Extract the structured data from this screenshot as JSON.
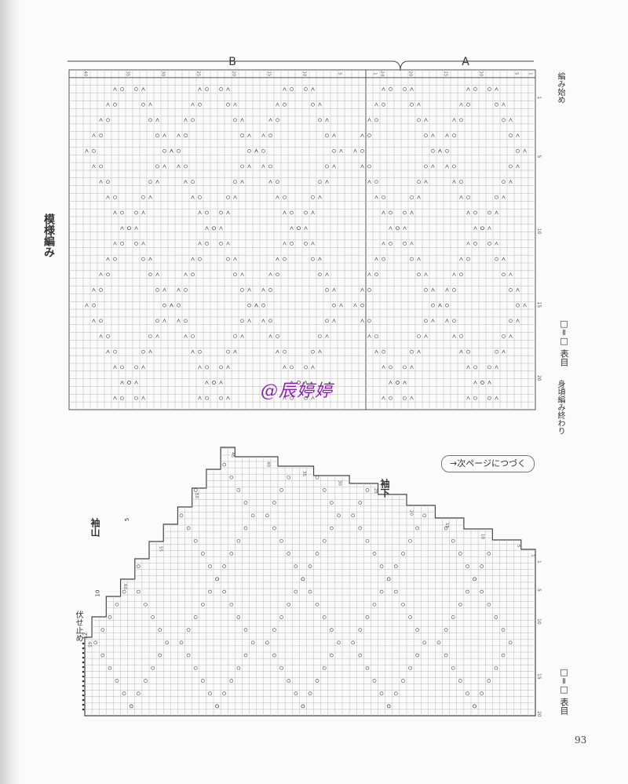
{
  "top_chart": {
    "title": "模様編み",
    "section_b": "B",
    "section_a": "A",
    "col_numbers": [
      "40",
      "35",
      "30",
      "25",
      "20",
      "15",
      "10",
      "5",
      "1",
      "24",
      "20",
      "15",
      "10",
      "5",
      "1"
    ],
    "row_numbers": [
      "1",
      "5",
      "10",
      "15",
      "20"
    ],
    "start_label": "編み始め",
    "end_label": "身頃編み終わり",
    "legend": "□=□ 表目"
  },
  "bottom_chart": {
    "cap_label": "袖山",
    "underarm_label": "袖下",
    "bindoff_label": "伏せ止め",
    "bindoff_counts": [
      "12",
      "10",
      "5"
    ],
    "col_numbers": [
      "65",
      "60",
      "55",
      "50",
      "45",
      "40",
      "35",
      "30",
      "25",
      "20",
      "15",
      "10",
      "5",
      "1"
    ],
    "row_numbers": [
      "1",
      "5",
      "10",
      "15",
      "20"
    ],
    "legend": "□=□ 表目"
  },
  "next_page": "→次ページにつづく",
  "page_number": "93",
  "watermark": "@辰婷婷"
}
